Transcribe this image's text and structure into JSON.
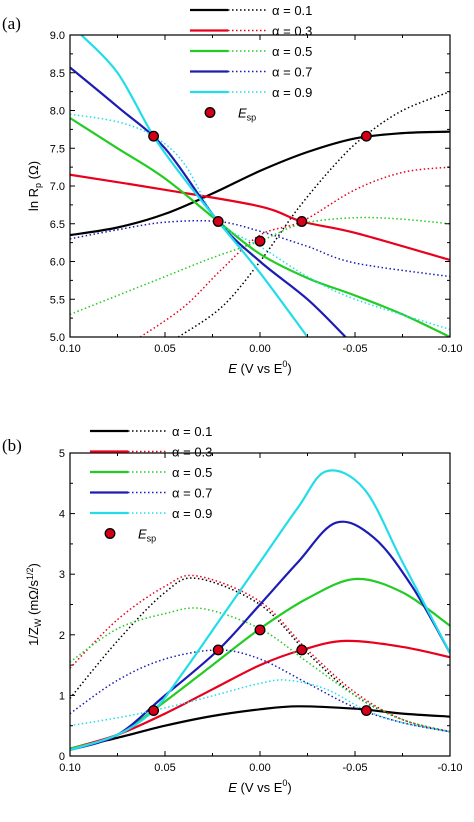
{
  "chart_data": [
    {
      "type": "line",
      "panel_label": "(a)",
      "ylabel_main": "ln R",
      "ylabel_sub": "p",
      "ylabel_unit": " (Ω)",
      "xlabel_main": "E",
      "xlabel_rest": " (V vs E",
      "xlabel_sup": "0",
      "xlabel_end": ")",
      "xlim": [
        0.1,
        -0.1
      ],
      "ylim": [
        5.0,
        9.0
      ],
      "xticks": [
        0.1,
        0.05,
        0.0,
        -0.05,
        -0.1
      ],
      "xtick_labels": [
        "0.10",
        "0.05",
        "0.00",
        "-0.05",
        "-0.10"
      ],
      "yticks": [
        5.0,
        5.5,
        6.0,
        6.5,
        7.0,
        7.5,
        8.0,
        8.5,
        9.0
      ],
      "ytick_labels": [
        "5.0",
        "5.5",
        "6.0",
        "6.5",
        "7.0",
        "7.5",
        "8.0",
        "8.5",
        "9.0"
      ],
      "legend_position": "top-right",
      "marker_label": "E",
      "marker_label_sub": "sp",
      "series": [
        {
          "name": "α = 0.1",
          "color": "#000000",
          "solid": [
            [
              0.1,
              6.35
            ],
            [
              0.075,
              6.45
            ],
            [
              0.05,
              6.63
            ],
            [
              0.025,
              6.9
            ],
            [
              0.0,
              7.2
            ],
            [
              -0.025,
              7.45
            ],
            [
              -0.05,
              7.63
            ],
            [
              -0.075,
              7.7
            ],
            [
              -0.1,
              7.72
            ]
          ],
          "dotted": [
            [
              0.043,
              5.0
            ],
            [
              0.02,
              5.4
            ],
            [
              0.0,
              6.0
            ],
            [
              -0.02,
              6.7
            ],
            [
              -0.04,
              7.3
            ],
            [
              -0.055,
              7.66
            ],
            [
              -0.075,
              8.0
            ],
            [
              -0.1,
              8.25
            ]
          ]
        },
        {
          "name": "α = 0.3",
          "color": "#e8001c",
          "solid": [
            [
              0.1,
              7.15
            ],
            [
              0.05,
              6.95
            ],
            [
              0.0,
              6.73
            ],
            [
              -0.022,
              6.53
            ],
            [
              -0.05,
              6.38
            ],
            [
              -0.1,
              6.02
            ]
          ],
          "dotted": [
            [
              0.063,
              5.0
            ],
            [
              0.04,
              5.4
            ],
            [
              0.02,
              5.9
            ],
            [
              0.0,
              6.35
            ],
            [
              -0.022,
              6.53
            ],
            [
              -0.05,
              6.95
            ],
            [
              -0.075,
              7.18
            ],
            [
              -0.1,
              7.25
            ]
          ]
        },
        {
          "name": "α = 0.5",
          "color": "#22cc22",
          "solid": [
            [
              0.1,
              7.9
            ],
            [
              0.075,
              7.5
            ],
            [
              0.05,
              7.1
            ],
            [
              0.022,
              6.53
            ],
            [
              0.0,
              6.1
            ],
            [
              -0.025,
              5.78
            ],
            [
              -0.05,
              5.55
            ],
            [
              -0.075,
              5.3
            ],
            [
              -0.1,
              5.0
            ]
          ],
          "dotted": [
            [
              0.1,
              5.3
            ],
            [
              0.075,
              5.55
            ],
            [
              0.05,
              5.8
            ],
            [
              0.025,
              6.05
            ],
            [
              0.0,
              6.27
            ],
            [
              -0.022,
              6.5
            ],
            [
              -0.05,
              6.58
            ],
            [
              -0.075,
              6.56
            ],
            [
              -0.1,
              6.5
            ]
          ]
        },
        {
          "name": "α = 0.7",
          "color": "#1c1cb4",
          "solid": [
            [
              0.1,
              8.57
            ],
            [
              0.075,
              8.05
            ],
            [
              0.05,
              7.5
            ],
            [
              0.022,
              6.53
            ],
            [
              0.0,
              6.0
            ],
            [
              -0.025,
              5.5
            ],
            [
              -0.045,
              5.0
            ]
          ],
          "dotted": [
            [
              0.1,
              6.3
            ],
            [
              0.075,
              6.42
            ],
            [
              0.05,
              6.52
            ],
            [
              0.022,
              6.53
            ],
            [
              0.0,
              6.4
            ],
            [
              -0.025,
              6.2
            ],
            [
              -0.05,
              5.98
            ],
            [
              -0.1,
              5.8
            ]
          ]
        },
        {
          "name": "α = 0.9",
          "color": "#22dde8",
          "solid": [
            [
              0.094,
              9.0
            ],
            [
              0.075,
              8.5
            ],
            [
              0.056,
              7.66
            ],
            [
              0.04,
              7.1
            ],
            [
              0.022,
              6.53
            ],
            [
              0.0,
              5.85
            ],
            [
              -0.025,
              5.0
            ]
          ],
          "dotted": [
            [
              0.1,
              7.95
            ],
            [
              0.075,
              7.85
            ],
            [
              0.056,
              7.66
            ],
            [
              0.04,
              7.3
            ],
            [
              0.022,
              6.53
            ],
            [
              0.0,
              6.2
            ],
            [
              -0.025,
              5.8
            ],
            [
              -0.05,
              5.5
            ],
            [
              -0.1,
              5.1
            ]
          ]
        }
      ],
      "markers": [
        [
          0.056,
          7.66
        ],
        [
          0.022,
          6.53
        ],
        [
          0.0,
          6.27
        ],
        [
          -0.022,
          6.53
        ],
        [
          -0.056,
          7.66
        ]
      ]
    },
    {
      "type": "line",
      "panel_label": "(b)",
      "ylabel_main": "1/Z",
      "ylabel_sub": "W",
      "ylabel_unit": " (mΩ/s",
      "ylabel_sup": "1/2",
      "ylabel_end": ")",
      "xlabel_main": "E",
      "xlabel_rest": " (V vs E",
      "xlabel_sup": "0",
      "xlabel_end": ")",
      "xlim": [
        0.1,
        -0.1
      ],
      "ylim": [
        0,
        5
      ],
      "xticks": [
        0.1,
        0.05,
        0.0,
        -0.05,
        -0.1
      ],
      "xtick_labels": [
        "0.10",
        "0.05",
        "0.00",
        "-0.05",
        "-0.10"
      ],
      "yticks": [
        0,
        1,
        2,
        3,
        4,
        5
      ],
      "ytick_labels": [
        "0",
        "1",
        "2",
        "3",
        "4",
        "5"
      ],
      "legend_position": "top-left",
      "marker_label": "E",
      "marker_label_sub": "sp",
      "series": [
        {
          "name": "α = 0.1",
          "color": "#000000",
          "solid": [
            [
              0.1,
              0.12
            ],
            [
              0.075,
              0.3
            ],
            [
              0.05,
              0.5
            ],
            [
              0.025,
              0.66
            ],
            [
              0.0,
              0.77
            ],
            [
              -0.02,
              0.82
            ],
            [
              -0.05,
              0.78
            ],
            [
              -0.075,
              0.7
            ],
            [
              -0.1,
              0.65
            ]
          ],
          "dotted": [
            [
              0.1,
              0.95
            ],
            [
              0.075,
              1.9
            ],
            [
              0.05,
              2.7
            ],
            [
              0.033,
              2.93
            ],
            [
              0.0,
              2.5
            ],
            [
              -0.025,
              1.7
            ],
            [
              -0.05,
              1.0
            ],
            [
              -0.075,
              0.6
            ],
            [
              -0.1,
              0.4
            ]
          ]
        },
        {
          "name": "α = 0.3",
          "color": "#e8001c",
          "solid": [
            [
              0.1,
              0.12
            ],
            [
              0.075,
              0.35
            ],
            [
              0.05,
              0.7
            ],
            [
              0.025,
              1.1
            ],
            [
              0.0,
              1.5
            ],
            [
              -0.022,
              1.75
            ],
            [
              -0.045,
              1.9
            ],
            [
              -0.075,
              1.8
            ],
            [
              -0.1,
              1.63
            ]
          ],
          "dotted": [
            [
              0.1,
              1.45
            ],
            [
              0.075,
              2.25
            ],
            [
              0.05,
              2.8
            ],
            [
              0.033,
              2.97
            ],
            [
              0.0,
              2.55
            ],
            [
              -0.025,
              1.75
            ],
            [
              -0.05,
              1.05
            ],
            [
              -0.075,
              0.6
            ],
            [
              -0.1,
              0.4
            ]
          ]
        },
        {
          "name": "α = 0.5",
          "color": "#22cc22",
          "solid": [
            [
              0.1,
              0.12
            ],
            [
              0.075,
              0.35
            ],
            [
              0.05,
              0.9
            ],
            [
              0.025,
              1.5
            ],
            [
              0.0,
              2.1
            ],
            [
              -0.025,
              2.6
            ],
            [
              -0.05,
              2.92
            ],
            [
              -0.075,
              2.7
            ],
            [
              -0.1,
              2.15
            ]
          ],
          "dotted": [
            [
              0.1,
              1.55
            ],
            [
              0.075,
              2.1
            ],
            [
              0.05,
              2.35
            ],
            [
              0.03,
              2.43
            ],
            [
              0.0,
              2.1
            ],
            [
              -0.025,
              1.55
            ],
            [
              -0.05,
              1.0
            ],
            [
              -0.075,
              0.6
            ],
            [
              -0.1,
              0.4
            ]
          ]
        },
        {
          "name": "α = 0.7",
          "color": "#1c1cb4",
          "solid": [
            [
              0.1,
              0.1
            ],
            [
              0.075,
              0.35
            ],
            [
              0.05,
              1.0
            ],
            [
              0.022,
              1.75
            ],
            [
              0.0,
              2.5
            ],
            [
              -0.02,
              3.2
            ],
            [
              -0.04,
              3.85
            ],
            [
              -0.06,
              3.6
            ],
            [
              -0.08,
              2.8
            ],
            [
              -0.1,
              1.7
            ]
          ],
          "dotted": [
            [
              0.1,
              0.7
            ],
            [
              0.075,
              1.25
            ],
            [
              0.05,
              1.6
            ],
            [
              0.022,
              1.75
            ],
            [
              0.0,
              1.6
            ],
            [
              -0.025,
              1.2
            ],
            [
              -0.05,
              0.8
            ],
            [
              -0.075,
              0.55
            ],
            [
              -0.1,
              0.4
            ]
          ]
        },
        {
          "name": "α = 0.9",
          "color": "#22dde8",
          "solid": [
            [
              0.1,
              0.1
            ],
            [
              0.075,
              0.35
            ],
            [
              0.056,
              0.75
            ],
            [
              0.04,
              1.4
            ],
            [
              0.02,
              2.3
            ],
            [
              0.0,
              3.2
            ],
            [
              -0.02,
              4.1
            ],
            [
              -0.035,
              4.7
            ],
            [
              -0.055,
              4.4
            ],
            [
              -0.075,
              3.2
            ],
            [
              -0.1,
              1.7
            ]
          ],
          "dotted": [
            [
              0.1,
              0.5
            ],
            [
              0.075,
              0.63
            ],
            [
              0.056,
              0.75
            ],
            [
              0.03,
              0.95
            ],
            [
              0.0,
              1.2
            ],
            [
              -0.015,
              1.25
            ],
            [
              -0.035,
              1.1
            ],
            [
              -0.056,
              0.75
            ],
            [
              -0.075,
              0.55
            ],
            [
              -0.1,
              0.4
            ]
          ]
        }
      ],
      "markers": [
        [
          0.056,
          0.75
        ],
        [
          0.022,
          1.75
        ],
        [
          0.0,
          2.08
        ],
        [
          -0.022,
          1.75
        ],
        [
          -0.056,
          0.75
        ]
      ]
    }
  ]
}
